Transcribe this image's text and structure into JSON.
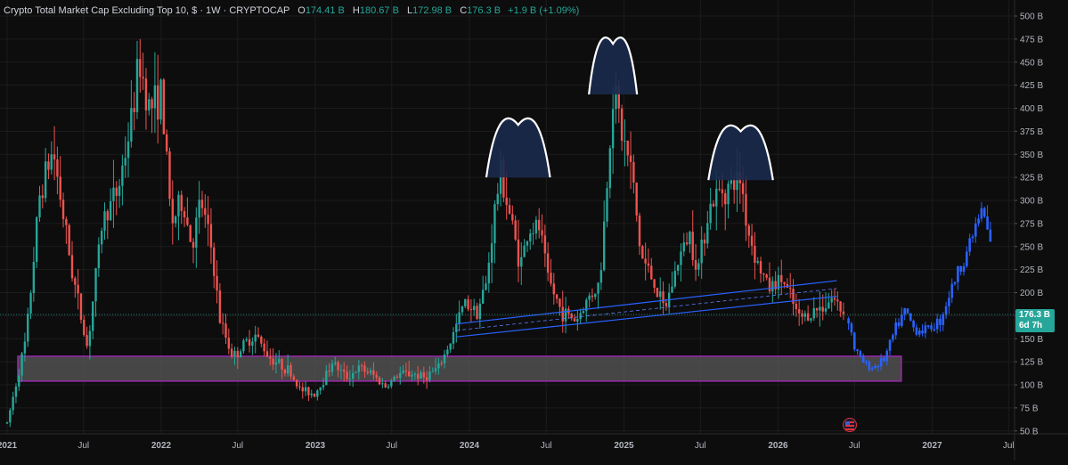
{
  "header": {
    "title": "Crypto Total Market Cap Excluding Top 10, $ · 1W · CRYPTOCAP",
    "open_label": "O",
    "open_value": "174.41 B",
    "high_label": "H",
    "high_value": "180.67 B",
    "low_label": "L",
    "low_value": "172.98 B",
    "close_label": "C",
    "close_value": "176.3 B",
    "change": "+1.9 B (+1.09%)"
  },
  "price_badge": {
    "value": "176.3 B",
    "countdown": "6d 7h"
  },
  "colors": {
    "background": "#0d0d0d",
    "up": "#26a69a",
    "down": "#ef5350",
    "projection": "#2962ff",
    "channel": "#2962ff",
    "zone_fill": "#5a5a5a",
    "zone_border": "#9c27b0",
    "dome_fill": "#1b2a4e",
    "dome_stroke": "#ffffff",
    "axis_text": "#b2b5be"
  },
  "icons": {
    "event_marker": "us-flag-icon"
  },
  "chart_data": {
    "type": "candlestick",
    "title": "Crypto Total Market Cap Excluding Top 10, $ · 1W · CRYPTOCAP",
    "unit": "B",
    "ylim": [
      50,
      510
    ],
    "y_ticks": [
      50,
      75,
      100,
      125,
      150,
      175,
      200,
      225,
      250,
      275,
      300,
      325,
      350,
      375,
      400,
      425,
      450,
      475,
      500
    ],
    "y_tick_labels": [
      "50 B",
      "75 B",
      "100 B",
      "125 B",
      "150 B",
      "175 B",
      "200 B",
      "225 B",
      "250 B",
      "275 B",
      "300 B",
      "325 B",
      "350 B",
      "375 B",
      "400 B",
      "425 B",
      "450 B",
      "475 B",
      "500 B"
    ],
    "x_range": [
      "2021-01-01",
      "2027-07-20"
    ],
    "x_ticks": [
      {
        "date": "2021-01-01",
        "label": "2021"
      },
      {
        "date": "2021-07-01",
        "label": "Jul"
      },
      {
        "date": "2022-01-01",
        "label": "2022"
      },
      {
        "date": "2022-07-01",
        "label": "Jul"
      },
      {
        "date": "2023-01-01",
        "label": "2023"
      },
      {
        "date": "2023-07-01",
        "label": "Jul"
      },
      {
        "date": "2024-01-01",
        "label": "2024"
      },
      {
        "date": "2024-07-01",
        "label": "Jul"
      },
      {
        "date": "2025-01-01",
        "label": "2025"
      },
      {
        "date": "2025-07-01",
        "label": "Jul"
      },
      {
        "date": "2026-01-01",
        "label": "2026"
      },
      {
        "date": "2026-07-01",
        "label": "Jul"
      },
      {
        "date": "2027-01-01",
        "label": "2027"
      },
      {
        "date": "2027-07-01",
        "label": "Jul"
      }
    ],
    "last_price": 176.3,
    "price_path": [
      [
        "2021-01-01",
        58
      ],
      [
        "2021-02-15",
        150
      ],
      [
        "2021-03-20",
        310
      ],
      [
        "2021-04-20",
        355
      ],
      [
        "2021-06-01",
        230
      ],
      [
        "2021-07-10",
        140
      ],
      [
        "2021-08-15",
        280
      ],
      [
        "2021-09-20",
        310
      ],
      [
        "2021-10-20",
        380
      ],
      [
        "2021-11-10",
        450
      ],
      [
        "2021-12-05",
        400
      ],
      [
        "2022-01-01",
        415
      ],
      [
        "2022-01-25",
        275
      ],
      [
        "2022-02-20",
        300
      ],
      [
        "2022-03-15",
        250
      ],
      [
        "2022-04-05",
        300
      ],
      [
        "2022-05-01",
        245
      ],
      [
        "2022-05-20",
        170
      ],
      [
        "2022-06-20",
        130
      ],
      [
        "2022-07-20",
        145
      ],
      [
        "2022-08-10",
        155
      ],
      [
        "2022-09-15",
        130
      ],
      [
        "2022-11-01",
        115
      ],
      [
        "2022-11-25",
        95
      ],
      [
        "2022-12-30",
        90
      ],
      [
        "2023-01-20",
        105
      ],
      [
        "2023-02-10",
        125
      ],
      [
        "2023-03-15",
        108
      ],
      [
        "2023-04-15",
        118
      ],
      [
        "2023-05-15",
        112
      ],
      [
        "2023-06-15",
        98
      ],
      [
        "2023-07-20",
        112
      ],
      [
        "2023-08-20",
        112
      ],
      [
        "2023-09-15",
        108
      ],
      [
        "2023-10-20",
        118
      ],
      [
        "2023-11-20",
        150
      ],
      [
        "2023-12-20",
        190
      ],
      [
        "2024-01-20",
        180
      ],
      [
        "2024-02-10",
        210
      ],
      [
        "2024-03-01",
        290
      ],
      [
        "2024-03-15",
        330
      ],
      [
        "2024-04-10",
        275
      ],
      [
        "2024-05-01",
        230
      ],
      [
        "2024-05-20",
        268
      ],
      [
        "2024-06-15",
        270
      ],
      [
        "2024-07-05",
        215
      ],
      [
        "2024-08-05",
        180
      ],
      [
        "2024-09-10",
        170
      ],
      [
        "2024-10-10",
        195
      ],
      [
        "2024-11-05",
        210
      ],
      [
        "2024-11-25",
        340
      ],
      [
        "2024-12-08",
        430
      ],
      [
        "2024-12-25",
        375
      ],
      [
        "2025-01-20",
        330
      ],
      [
        "2025-02-10",
        240
      ],
      [
        "2025-03-10",
        215
      ],
      [
        "2025-04-07",
        180
      ],
      [
        "2025-05-10",
        235
      ],
      [
        "2025-06-05",
        265
      ],
      [
        "2025-06-25",
        225
      ],
      [
        "2025-07-20",
        290
      ],
      [
        "2025-08-15",
        310
      ],
      [
        "2025-09-10",
        315
      ],
      [
        "2025-10-05",
        325
      ],
      [
        "2025-10-20",
        270
      ],
      [
        "2025-11-15",
        230
      ],
      [
        "2025-12-10",
        205
      ],
      [
        "2026-01-10",
        215
      ],
      [
        "2026-01-30",
        195
      ],
      [
        "2026-02-20",
        172
      ],
      [
        "2026-03-20",
        178
      ],
      [
        "2026-04-15",
        185
      ],
      [
        "2026-05-10",
        195
      ],
      [
        "2026-06-01",
        180
      ],
      [
        "2026-06-10",
        176.3
      ]
    ],
    "projection_path": [
      [
        "2026-06-17",
        172
      ],
      [
        "2026-07-01",
        140
      ],
      [
        "2026-07-20",
        125
      ],
      [
        "2026-08-10",
        118
      ],
      [
        "2026-09-10",
        128
      ],
      [
        "2026-10-10",
        165
      ],
      [
        "2026-10-30",
        180
      ],
      [
        "2026-11-20",
        160
      ],
      [
        "2026-12-20",
        160
      ],
      [
        "2027-01-20",
        170
      ],
      [
        "2027-02-20",
        210
      ],
      [
        "2027-03-20",
        240
      ],
      [
        "2027-04-20",
        280
      ],
      [
        "2027-05-01",
        290
      ],
      [
        "2027-05-15",
        260
      ],
      [
        "2027-05-25",
        240
      ]
    ],
    "support_zone": {
      "x_from": "2021-01-01",
      "x_to": "2026-10-20",
      "y_from": 104,
      "y_to": 131
    },
    "channel": {
      "lower": {
        "from": [
          "2023-12-01",
          152
        ],
        "to": [
          "2026-05-20",
          196
        ]
      },
      "upper": {
        "from": [
          "2023-12-01",
          166
        ],
        "to": [
          "2026-05-20",
          213
        ]
      }
    },
    "domes": [
      {
        "x_from": "2024-02-10",
        "x_to": "2024-07-10",
        "base": 325,
        "peak": 380
      },
      {
        "x_from": "2024-10-10",
        "x_to": "2025-02-01",
        "base": 415,
        "peak": 468
      },
      {
        "x_from": "2025-07-20",
        "x_to": "2025-12-20",
        "base": 322,
        "peak": 373
      }
    ]
  }
}
